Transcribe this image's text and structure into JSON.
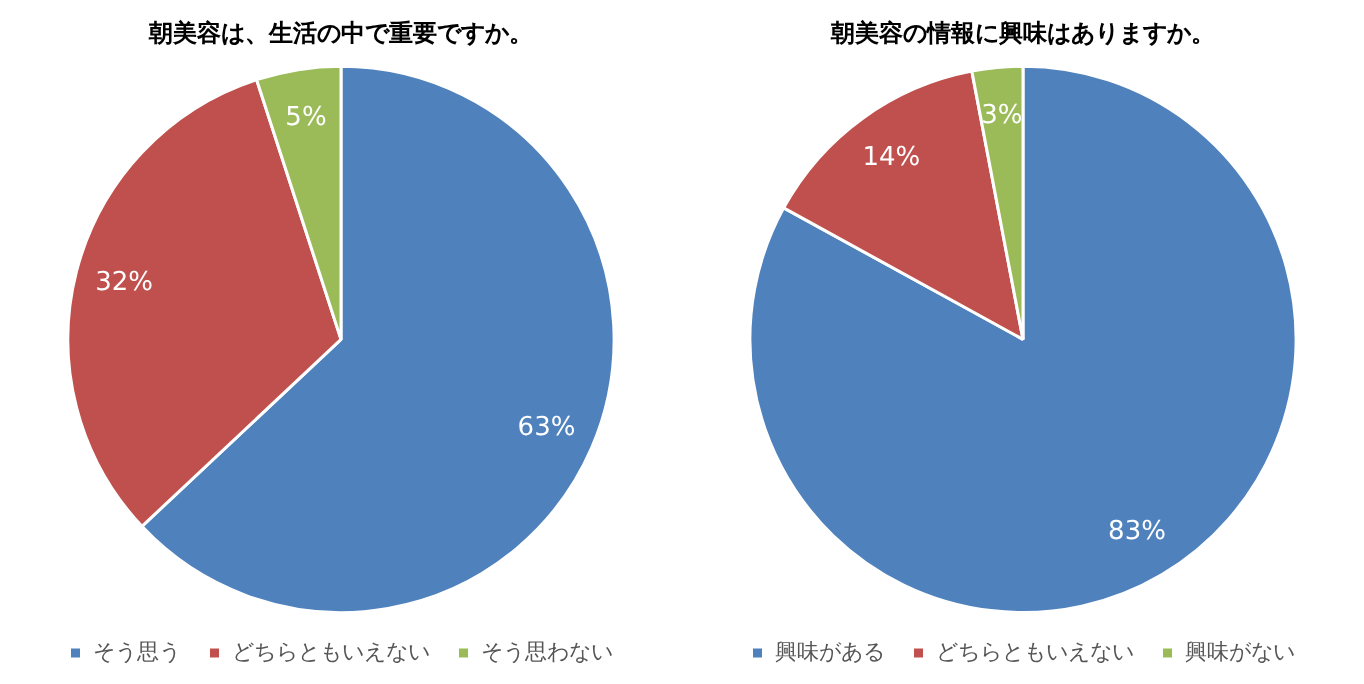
{
  "chart_data": [
    {
      "type": "pie",
      "title": "朝美容は、生活の中で重要ですか。",
      "categories": [
        "そう思う",
        "どちらともいえない",
        "そう思わない"
      ],
      "values": [
        63,
        32,
        5
      ],
      "colors": [
        "#4f81bd",
        "#c0504d",
        "#9bbb59"
      ],
      "value_labels": [
        "63%",
        "32%",
        "5%"
      ],
      "legend": "bottom"
    },
    {
      "type": "pie",
      "title": "朝美容の情報に興味はありますか。",
      "categories": [
        "興味がある",
        "どちらともいえない",
        "興味がない"
      ],
      "values": [
        83,
        14,
        3
      ],
      "colors": [
        "#4f81bd",
        "#c0504d",
        "#9bbb59"
      ],
      "value_labels": [
        "83%",
        "14%",
        "3%"
      ],
      "legend": "bottom"
    }
  ]
}
